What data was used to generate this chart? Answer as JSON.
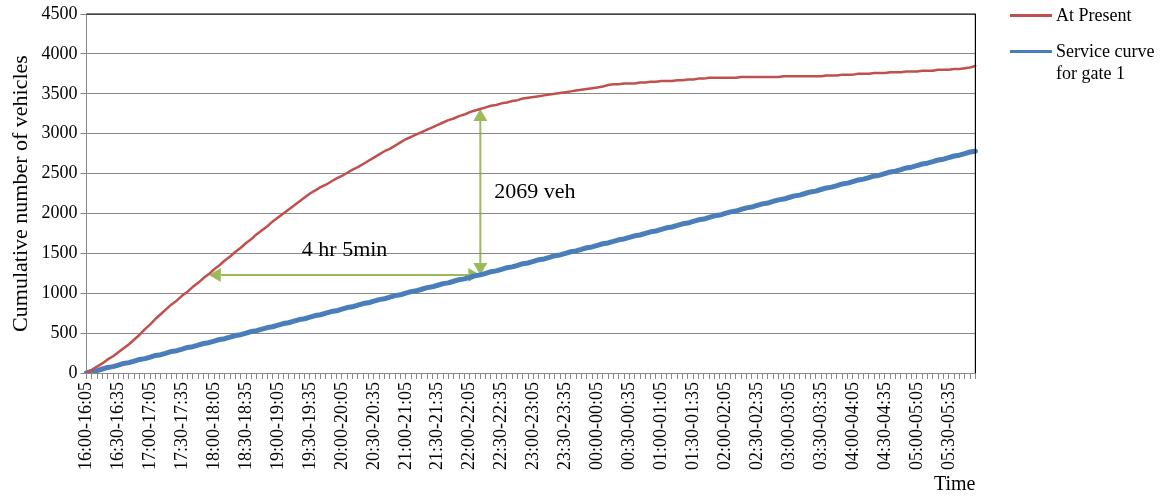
{
  "chart_data": {
    "type": "line",
    "xlabel": "Time",
    "ylabel": "Cumulative number of vehicles",
    "categories": [
      "16:00-16:05",
      null,
      null,
      null,
      null,
      null,
      "16:30-16:35",
      null,
      null,
      null,
      null,
      null,
      "17:00-17:05",
      null,
      null,
      null,
      null,
      null,
      "17:30-17:35",
      null,
      null,
      null,
      null,
      null,
      "18:00-18:05",
      null,
      null,
      null,
      null,
      null,
      "18:30-18:35",
      null,
      null,
      null,
      null,
      null,
      "19:00-19:05",
      null,
      null,
      null,
      null,
      null,
      "19:30-19:35",
      null,
      null,
      null,
      null,
      null,
      "20:00-20:05",
      null,
      null,
      null,
      null,
      null,
      "20:30-20:35",
      null,
      null,
      null,
      null,
      null,
      "21:00-21:05",
      null,
      null,
      null,
      null,
      null,
      "21:30-21:35",
      null,
      null,
      null,
      null,
      null,
      "22:00-22:05",
      null,
      null,
      null,
      null,
      null,
      "22:30-22:35",
      null,
      null,
      null,
      null,
      null,
      "23:00-23:05",
      null,
      null,
      null,
      null,
      null,
      "23:30-23:35",
      null,
      null,
      null,
      null,
      null,
      "00:00-00:05",
      null,
      null,
      null,
      null,
      null,
      "00:30-00:35",
      null,
      null,
      null,
      null,
      null,
      "01:00-01:05",
      null,
      null,
      null,
      null,
      null,
      "01:30-01:35",
      null,
      null,
      null,
      null,
      null,
      "02:00-02:05",
      null,
      null,
      null,
      null,
      null,
      "02:30-02:35",
      null,
      null,
      null,
      null,
      null,
      "03:00-03:05",
      null,
      null,
      null,
      null,
      null,
      "03:30-03:35",
      null,
      null,
      null,
      null,
      null,
      "04:00-04:05",
      null,
      null,
      null,
      null,
      null,
      "04:30-04:35",
      null,
      null,
      null,
      null,
      null,
      "05:00-05:05",
      null,
      null,
      null,
      null,
      null,
      "05:30-05:35",
      null,
      null,
      null,
      null,
      null
    ],
    "series": [
      {
        "name": "At Present",
        "color": "#c0504d",
        "values": [
          0,
          40,
          80,
          120,
          170,
          210,
          260,
          310,
          360,
          420,
          480,
          550,
          610,
          680,
          740,
          800,
          860,
          910,
          970,
          1020,
          1080,
          1130,
          1190,
          1240,
          1300,
          1350,
          1410,
          1460,
          1520,
          1570,
          1630,
          1680,
          1740,
          1790,
          1840,
          1900,
          1950,
          2000,
          2050,
          2100,
          2150,
          2200,
          2250,
          2290,
          2330,
          2360,
          2400,
          2440,
          2470,
          2510,
          2550,
          2580,
          2620,
          2660,
          2700,
          2740,
          2780,
          2810,
          2850,
          2890,
          2930,
          2960,
          2990,
          3020,
          3050,
          3080,
          3110,
          3140,
          3170,
          3190,
          3220,
          3240,
          3270,
          3290,
          3310,
          3330,
          3350,
          3360,
          3380,
          3390,
          3410,
          3420,
          3440,
          3450,
          3460,
          3470,
          3480,
          3490,
          3500,
          3510,
          3520,
          3530,
          3540,
          3550,
          3560,
          3570,
          3580,
          3590,
          3610,
          3620,
          3620,
          3630,
          3630,
          3630,
          3640,
          3640,
          3650,
          3650,
          3660,
          3660,
          3660,
          3670,
          3670,
          3680,
          3680,
          3690,
          3690,
          3700,
          3700,
          3700,
          3700,
          3700,
          3700,
          3710,
          3710,
          3710,
          3710,
          3710,
          3710,
          3710,
          3710,
          3720,
          3720,
          3720,
          3720,
          3720,
          3720,
          3720,
          3720,
          3730,
          3730,
          3730,
          3740,
          3740,
          3740,
          3750,
          3750,
          3750,
          3760,
          3760,
          3760,
          3770,
          3770,
          3770,
          3780,
          3780,
          3780,
          3790,
          3790,
          3790,
          3800,
          3800,
          3800,
          3810,
          3810,
          3820,
          3830,
          3850
        ]
      },
      {
        "name": "Service curve for gate 1",
        "color": "#4a7ebb",
        "values": [
          0,
          20,
          30,
          50,
          70,
          80,
          100,
          120,
          130,
          150,
          170,
          180,
          200,
          220,
          230,
          250,
          270,
          280,
          300,
          320,
          330,
          350,
          370,
          380,
          400,
          420,
          430,
          450,
          470,
          480,
          500,
          520,
          530,
          550,
          570,
          580,
          600,
          620,
          630,
          650,
          670,
          680,
          700,
          720,
          730,
          750,
          770,
          780,
          800,
          820,
          830,
          850,
          870,
          880,
          900,
          920,
          930,
          950,
          970,
          980,
          1000,
          1020,
          1030,
          1050,
          1070,
          1080,
          1100,
          1120,
          1130,
          1150,
          1170,
          1180,
          1200,
          1220,
          1230,
          1250,
          1270,
          1280,
          1300,
          1320,
          1330,
          1350,
          1370,
          1380,
          1400,
          1420,
          1430,
          1450,
          1470,
          1480,
          1500,
          1520,
          1530,
          1550,
          1570,
          1580,
          1600,
          1620,
          1630,
          1650,
          1670,
          1680,
          1700,
          1720,
          1730,
          1750,
          1770,
          1780,
          1800,
          1820,
          1830,
          1850,
          1870,
          1880,
          1900,
          1920,
          1930,
          1950,
          1970,
          1980,
          2000,
          2020,
          2030,
          2050,
          2070,
          2080,
          2100,
          2120,
          2130,
          2150,
          2170,
          2180,
          2200,
          2220,
          2230,
          2250,
          2270,
          2280,
          2300,
          2320,
          2330,
          2350,
          2370,
          2380,
          2400,
          2420,
          2430,
          2450,
          2470,
          2480,
          2500,
          2520,
          2530,
          2550,
          2570,
          2580,
          2600,
          2620,
          2630,
          2650,
          2670,
          2680,
          2700,
          2720,
          2730,
          2750,
          2770,
          2780
        ]
      }
    ],
    "ylim": [
      0,
      4500
    ],
    "yticks": [
      0,
      500,
      1000,
      1500,
      2000,
      2500,
      3000,
      3500,
      4000,
      4500
    ],
    "grid": "y",
    "legend": "top right",
    "marker": "none",
    "line_style": "solid",
    "annotations": [
      "4 hr 5min",
      "2069 veh"
    ]
  }
}
